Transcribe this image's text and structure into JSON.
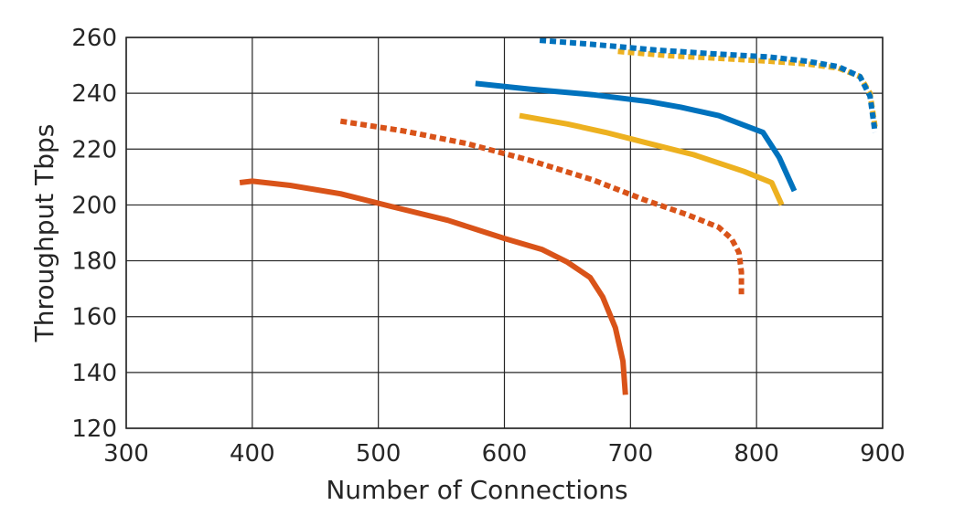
{
  "chart_data": {
    "type": "line",
    "title": "",
    "xlabel": "Number of Connections",
    "ylabel": "Throughput Tbps",
    "xlim": [
      300,
      900
    ],
    "ylim": [
      120,
      260
    ],
    "xticks": [
      300,
      400,
      500,
      600,
      700,
      800,
      900
    ],
    "yticks": [
      120,
      140,
      160,
      180,
      200,
      220,
      240,
      260
    ],
    "grid": true,
    "legend": "none",
    "series": [
      {
        "color": "#D95319",
        "dash": "solid",
        "x": [
          390,
          400,
          430,
          470,
          510,
          555,
          600,
          630,
          650,
          668,
          678,
          688,
          694,
          696
        ],
        "y": [
          208,
          208.5,
          207,
          204,
          199.5,
          194.5,
          188,
          184,
          179.5,
          174,
          167,
          156,
          144,
          132
        ]
      },
      {
        "color": "#D95319",
        "dash": "dotted",
        "x": [
          470,
          520,
          570,
          620,
          670,
          710,
          745,
          770,
          780,
          786,
          788,
          788
        ],
        "y": [
          230,
          226.5,
          222,
          216,
          209,
          202,
          196.5,
          192,
          188,
          183,
          176,
          168
        ]
      },
      {
        "color": "#EDB120",
        "dash": "solid",
        "x": [
          612,
          650,
          680,
          715,
          750,
          790,
          812,
          820
        ],
        "y": [
          232,
          229,
          226,
          222,
          218,
          212,
          208,
          200
        ]
      },
      {
        "color": "#0072BD",
        "dash": "solid",
        "x": [
          577,
          620,
          670,
          715,
          740,
          770,
          805,
          818,
          830
        ],
        "y": [
          243.5,
          241.5,
          239.5,
          237,
          235,
          232,
          226,
          217,
          205
        ]
      },
      {
        "color": "#EDB120",
        "dash": "dotted",
        "x": [
          690,
          730,
          770,
          810,
          840,
          865,
          882,
          890,
          894
        ],
        "y": [
          255,
          253.5,
          252.5,
          251.5,
          250.5,
          249,
          246,
          240,
          228
        ]
      },
      {
        "color": "#0072BD",
        "dash": "dotted",
        "x": [
          628,
          670,
          720,
          770,
          810,
          840,
          865,
          882,
          890,
          894
        ],
        "y": [
          259,
          257.5,
          255.5,
          254,
          253,
          251.5,
          249.5,
          246,
          239,
          226
        ]
      }
    ]
  }
}
